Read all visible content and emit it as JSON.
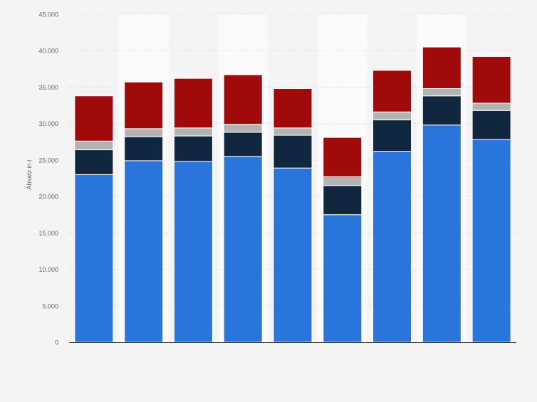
{
  "chart_data": {
    "type": "bar",
    "stacked": true,
    "title": "",
    "xlabel": "",
    "ylabel": "Absatz in t",
    "ylim": [
      0,
      45000
    ],
    "yticks": [
      0,
      5000,
      10000,
      15000,
      20000,
      25000,
      30000,
      35000,
      40000,
      45000
    ],
    "ytick_labels": [
      "0",
      "5.000",
      "10.000",
      "15.000",
      "20.000",
      "25.000",
      "30.000",
      "35.000",
      "40.000",
      "45.000"
    ],
    "grid": true,
    "legend": "none",
    "categories": [
      "",
      "",
      "",
      "",
      "",
      "",
      "",
      "",
      ""
    ],
    "series": [
      {
        "color": "#2975dc",
        "values": [
          23000,
          24900,
          24800,
          25500,
          23900,
          17500,
          26200,
          29800,
          27800
        ]
      },
      {
        "color": "#10273f",
        "values": [
          3400,
          3300,
          3500,
          3300,
          4500,
          4000,
          4300,
          4000,
          4000
        ]
      },
      {
        "color": "#b3b3b3",
        "values": [
          1200,
          1100,
          1100,
          1100,
          1000,
          1200,
          1100,
          1000,
          1000
        ]
      },
      {
        "color": "#a10a0a",
        "values": [
          6200,
          6400,
          6800,
          6800,
          5400,
          5400,
          5700,
          5700,
          6400
        ]
      }
    ]
  }
}
